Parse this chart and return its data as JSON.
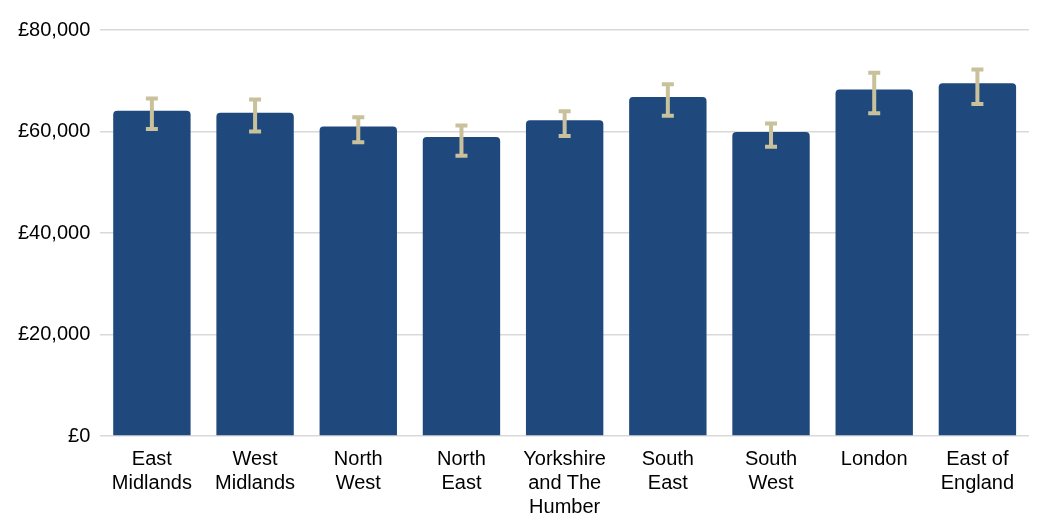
{
  "chart_data": {
    "type": "bar",
    "categories": [
      "East Midlands",
      "West Midlands",
      "North West",
      "North East",
      "Yorkshire and The Humber",
      "South East",
      "South West",
      "London",
      "East of England"
    ],
    "values": [
      64100,
      63700,
      61000,
      58900,
      62200,
      66800,
      59900,
      68300,
      69500
    ],
    "errors": [
      [
        60500,
        66500
      ],
      [
        60000,
        66300
      ],
      [
        57900,
        62800
      ],
      [
        55200,
        61200
      ],
      [
        59100,
        64000
      ],
      [
        63100,
        69300
      ],
      [
        57000,
        61600
      ],
      [
        63600,
        71600
      ],
      [
        65400,
        72200
      ]
    ],
    "color": "#1f497d",
    "ylim": [
      0,
      80000
    ],
    "yticks": [
      {
        "value": 0,
        "label": "£0"
      },
      {
        "value": 20000,
        "label": "£20,000"
      },
      {
        "value": 40000,
        "label": "£40,000"
      },
      {
        "value": 60000,
        "label": "£60,000"
      },
      {
        "value": 80000,
        "label": "£80,000"
      }
    ],
    "grid": "y",
    "legend": false
  }
}
